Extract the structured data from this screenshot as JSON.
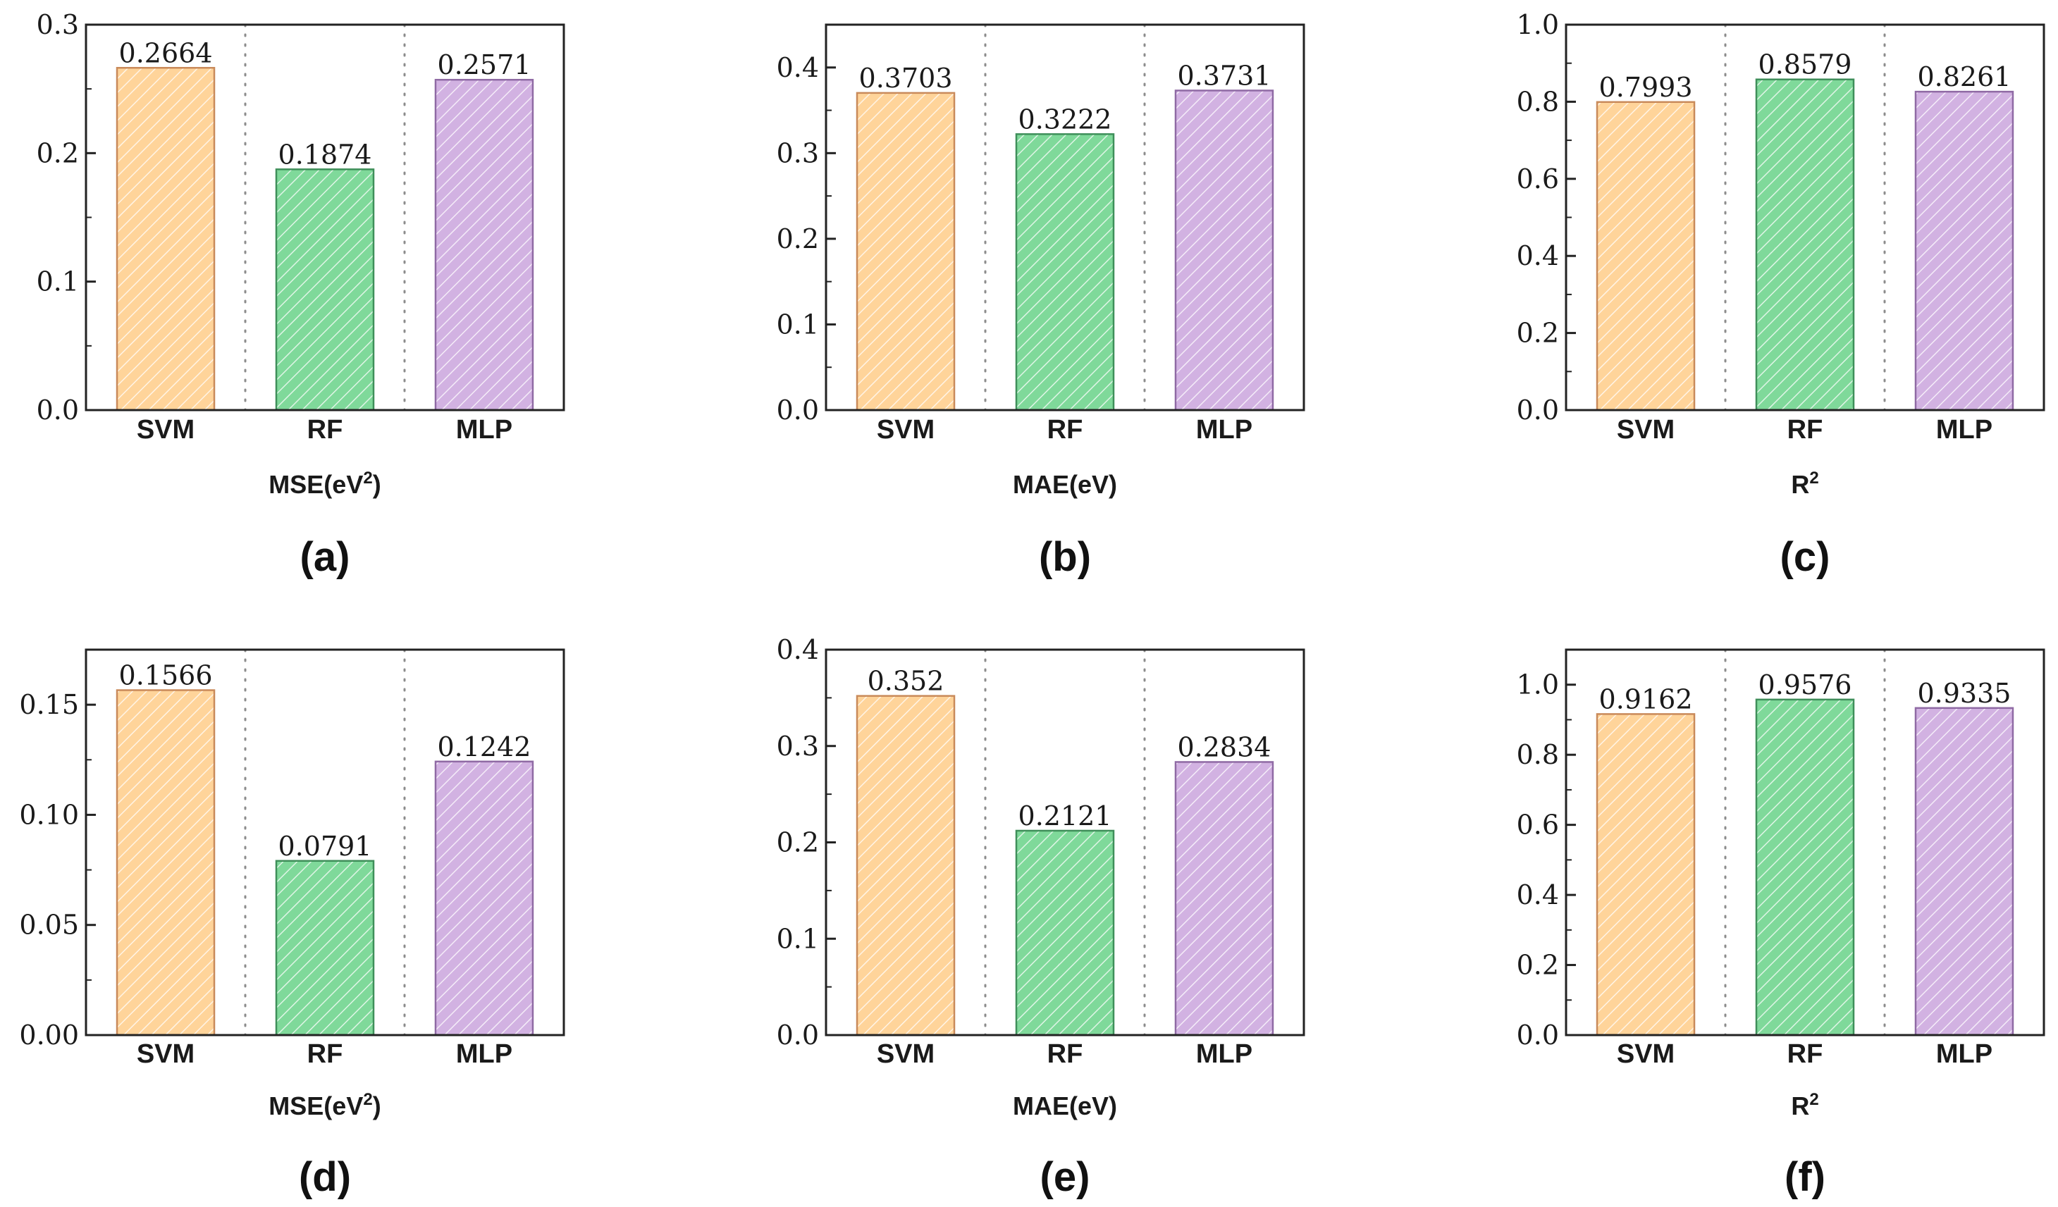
{
  "figure": {
    "colors": {
      "SVM": "#ffd49a",
      "RF": "#7fd99a",
      "MLP": "#d2b2e2",
      "axis": "#222222",
      "separator": "#8c8c8c"
    },
    "edge_colors": {
      "SVM": "#c98a5a",
      "RF": "#3f8f5a",
      "MLP": "#8f6aa4"
    }
  },
  "chart_data": [
    {
      "panel": "(a)",
      "type": "bar",
      "categories": [
        "SVM",
        "RF",
        "MLP"
      ],
      "values": [
        0.2664,
        0.1874,
        0.2571
      ],
      "value_labels": [
        "0.2664",
        "0.1874",
        "0.2571"
      ],
      "xlabel_main": "MSE(eV",
      "xlabel_sup": "2",
      "xlabel_tail": ")",
      "ylim": [
        0,
        0.3
      ],
      "yticks": [
        0,
        0.1,
        0.2,
        0.3
      ],
      "ytick_labels": [
        "0.0",
        "0.1",
        "0.2",
        "0.3"
      ]
    },
    {
      "panel": "(b)",
      "type": "bar",
      "categories": [
        "SVM",
        "RF",
        "MLP"
      ],
      "values": [
        0.3703,
        0.3222,
        0.3731
      ],
      "value_labels": [
        "0.3703",
        "0.3222",
        "0.3731"
      ],
      "xlabel_main": "MAE(eV)",
      "xlabel_sup": "",
      "xlabel_tail": "",
      "ylim": [
        0,
        0.45
      ],
      "yticks": [
        0,
        0.1,
        0.2,
        0.3,
        0.4
      ],
      "ytick_labels": [
        "0.0",
        "0.1",
        "0.2",
        "0.3",
        "0.4"
      ]
    },
    {
      "panel": "(c)",
      "type": "bar",
      "categories": [
        "SVM",
        "RF",
        "MLP"
      ],
      "values": [
        0.7993,
        0.8579,
        0.8261
      ],
      "value_labels": [
        "0.7993",
        "0.8579",
        "0.8261"
      ],
      "xlabel_main": "R",
      "xlabel_sup": "2",
      "xlabel_tail": "",
      "ylim": [
        0,
        1.0
      ],
      "yticks": [
        0,
        0.2,
        0.4,
        0.6,
        0.8,
        1.0
      ],
      "ytick_labels": [
        "0.0",
        "0.2",
        "0.4",
        "0.6",
        "0.8",
        "1.0"
      ]
    },
    {
      "panel": "(d)",
      "type": "bar",
      "categories": [
        "SVM",
        "RF",
        "MLP"
      ],
      "values": [
        0.1566,
        0.0791,
        0.1242
      ],
      "value_labels": [
        "0.1566",
        "0.0791",
        "0.1242"
      ],
      "xlabel_main": "MSE(eV",
      "xlabel_sup": "2",
      "xlabel_tail": ")",
      "ylim": [
        0,
        0.175
      ],
      "yticks": [
        0,
        0.05,
        0.1,
        0.15
      ],
      "ytick_labels": [
        "0.00",
        "0.05",
        "0.10",
        "0.15"
      ]
    },
    {
      "panel": "(e)",
      "type": "bar",
      "categories": [
        "SVM",
        "RF",
        "MLP"
      ],
      "values": [
        0.352,
        0.2121,
        0.2834
      ],
      "value_labels": [
        "0.352",
        "0.2121",
        "0.2834"
      ],
      "xlabel_main": "MAE(eV)",
      "xlabel_sup": "",
      "xlabel_tail": "",
      "ylim": [
        0,
        0.4
      ],
      "yticks": [
        0,
        0.1,
        0.2,
        0.3,
        0.4
      ],
      "ytick_labels": [
        "0.0",
        "0.1",
        "0.2",
        "0.3",
        "0.4"
      ]
    },
    {
      "panel": "(f)",
      "type": "bar",
      "categories": [
        "SVM",
        "RF",
        "MLP"
      ],
      "values": [
        0.9162,
        0.9576,
        0.9335
      ],
      "value_labels": [
        "0.9162",
        "0.9576",
        "0.9335"
      ],
      "xlabel_main": "R",
      "xlabel_sup": "2",
      "xlabel_tail": "",
      "ylim": [
        0,
        1.1
      ],
      "yticks": [
        0,
        0.2,
        0.4,
        0.6,
        0.8,
        1.0
      ],
      "ytick_labels": [
        "0.0",
        "0.2",
        "0.4",
        "0.6",
        "0.8",
        "1.0"
      ]
    }
  ]
}
